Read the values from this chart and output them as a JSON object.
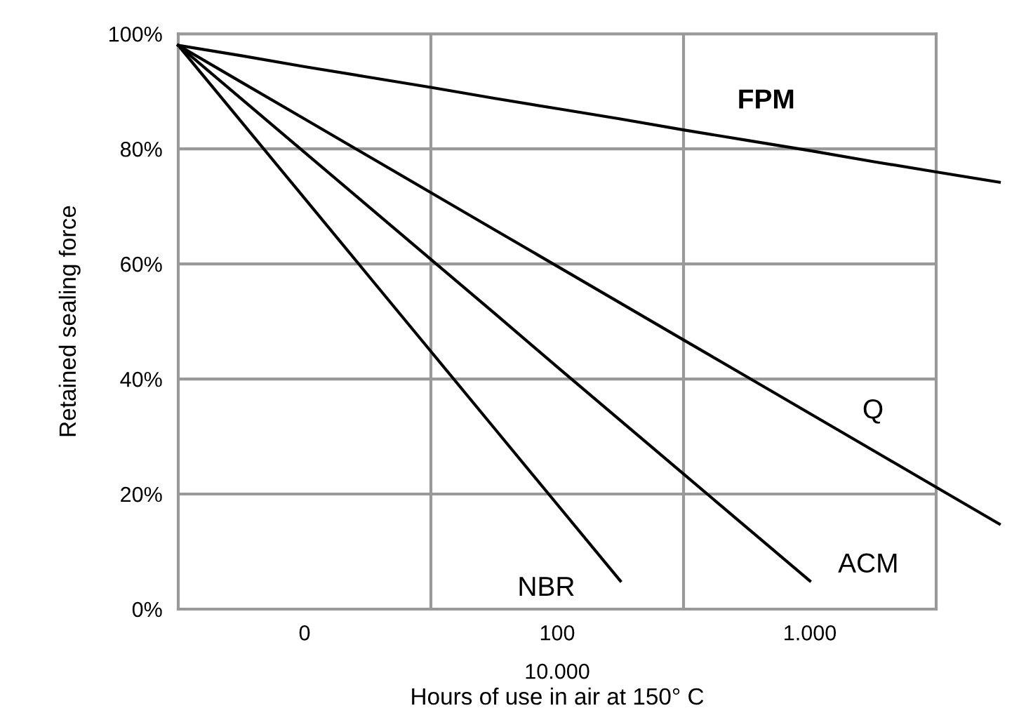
{
  "chart_data": {
    "type": "line",
    "xlabel": "Hours of use in air at 150° C",
    "ylabel": "Retained sealing force",
    "categories": [
      null,
      null,
      "0",
      null,
      null,
      null,
      "100",
      null,
      null,
      null,
      "1.000",
      null,
      null,
      null
    ],
    "ylim": [
      0,
      100
    ],
    "yticks": [
      {
        "value": 0,
        "label": "0%"
      },
      {
        "value": 20,
        "label": "20%"
      },
      {
        "value": 40,
        "label": "40%"
      },
      {
        "value": 60,
        "label": "60%"
      },
      {
        "value": 80,
        "label": "80%"
      },
      {
        "value": 100,
        "label": "100%"
      }
    ],
    "grid": true,
    "series": [
      {
        "name": "FPM",
        "color": "#000000",
        "values": [
          98,
          96.2,
          94.3,
          92.5,
          90.7,
          88.8,
          87.0,
          85.2,
          83.3,
          81.5,
          79.7,
          77.8,
          76.0,
          74.2
        ]
      },
      {
        "name": "Q",
        "color": "#000000",
        "values": [
          98,
          91.6,
          85.2,
          78.8,
          72.4,
          66.0,
          59.6,
          53.2,
          46.8,
          40.4,
          34.0,
          27.6,
          21.2,
          14.8
        ]
      },
      {
        "name": "ACM",
        "color": "#000000",
        "values": [
          98,
          88.7,
          79.4,
          70.1,
          60.8,
          51.5,
          42.1,
          32.8,
          23.5,
          14.2,
          4.9,
          null,
          null,
          null
        ]
      },
      {
        "name": "NBR",
        "color": "#000000",
        "values": [
          98,
          84.7,
          71.4,
          58.1,
          44.8,
          31.5,
          18.2,
          4.9,
          null,
          null,
          null,
          null,
          null,
          null
        ]
      }
    ],
    "annotations": [
      "10.000"
    ],
    "marker": "none",
    "line_style": "solid"
  }
}
